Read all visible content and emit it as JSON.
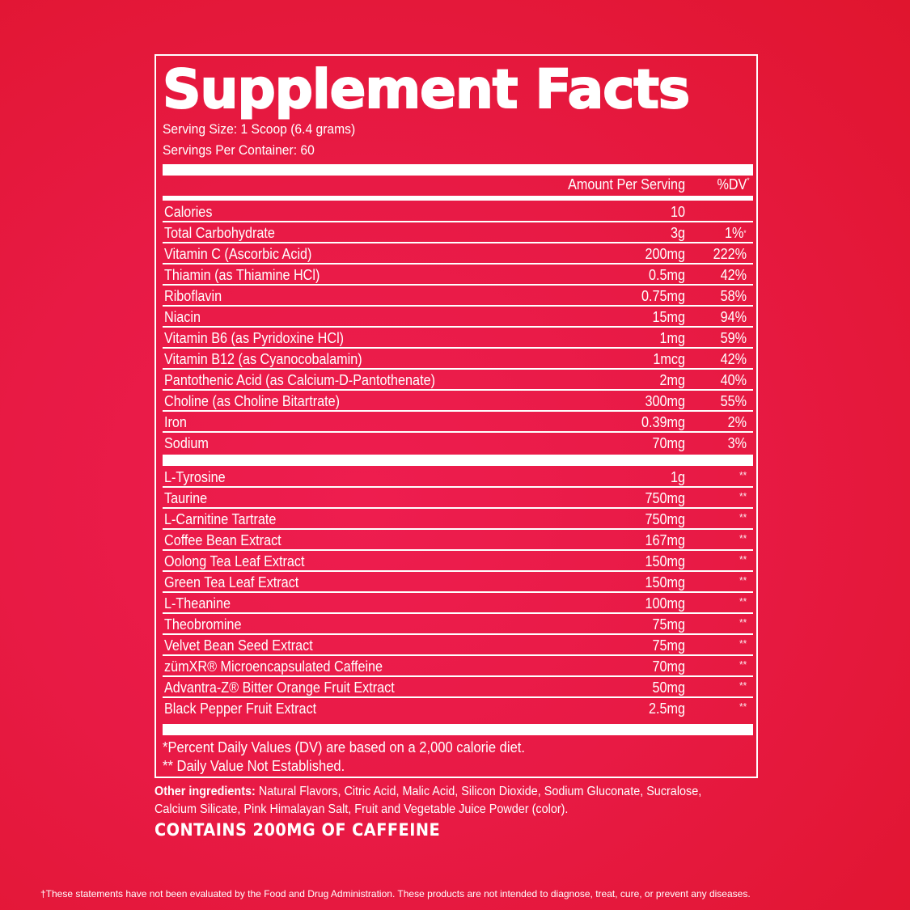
{
  "colors": {
    "background": "#e81a45",
    "text": "#ffffff"
  },
  "title": "Supplement Facts",
  "serving_size": "Serving Size: 1 Scoop (6.4 grams)",
  "servings_per_container": "Servings Per Container: 60",
  "header": {
    "amount": "Amount Per Serving",
    "dv": "%DV",
    "dv_mark": "*"
  },
  "nutrients": [
    {
      "name": "Calories",
      "amount": "10",
      "dv": ""
    },
    {
      "name": "Total Carbohydrate",
      "amount": "3g",
      "dv": "1%",
      "mark": "*"
    },
    {
      "name": "Vitamin C (Ascorbic Acid)",
      "amount": "200mg",
      "dv": "222%"
    },
    {
      "name": "Thiamin (as Thiamine HCl)",
      "amount": "0.5mg",
      "dv": "42%"
    },
    {
      "name": "Riboflavin",
      "amount": "0.75mg",
      "dv": "58%"
    },
    {
      "name": "Niacin",
      "amount": "15mg",
      "dv": "94%"
    },
    {
      "name": "Vitamin B6 (as Pyridoxine HCl)",
      "amount": "1mg",
      "dv": "59%"
    },
    {
      "name": "Vitamin B12 (as Cyanocobalamin)",
      "amount": "1mcg",
      "dv": "42%"
    },
    {
      "name": "Pantothenic Acid (as Calcium-D-Pantothenate)",
      "amount": "2mg",
      "dv": "40%"
    },
    {
      "name": "Choline (as Choline Bitartrate)",
      "amount": "300mg",
      "dv": "55%"
    },
    {
      "name": "Iron",
      "amount": "0.39mg",
      "dv": "2%"
    },
    {
      "name": "Sodium",
      "amount": "70mg",
      "dv": "3%"
    }
  ],
  "ingredients": [
    {
      "name": "L-Tyrosine",
      "amount": "1g",
      "dv": "**"
    },
    {
      "name": "Taurine",
      "amount": "750mg",
      "dv": "**"
    },
    {
      "name": "L-Carnitine Tartrate",
      "amount": "750mg",
      "dv": "**"
    },
    {
      "name": "Coffee Bean Extract",
      "amount": "167mg",
      "dv": "**"
    },
    {
      "name": "Oolong Tea Leaf Extract",
      "amount": "150mg",
      "dv": "**"
    },
    {
      "name": "Green Tea Leaf Extract",
      "amount": "150mg",
      "dv": "**"
    },
    {
      "name": "L-Theanine",
      "amount": "100mg",
      "dv": "**"
    },
    {
      "name": "Theobromine",
      "amount": "75mg",
      "dv": "**"
    },
    {
      "name": "Velvet Bean Seed Extract",
      "amount": "75mg",
      "dv": "**"
    },
    {
      "name": "zümXR® Microencapsulated Caffeine",
      "amount": "70mg",
      "dv": "**"
    },
    {
      "name": "Advantra-Z® Bitter Orange Fruit Extract",
      "amount": "50mg",
      "dv": "**"
    },
    {
      "name": "Black Pepper Fruit Extract",
      "amount": "2.5mg",
      "dv": "**"
    }
  ],
  "footnotes": {
    "dv_note": "*Percent Daily Values (DV) are based on a 2,000 calorie diet.",
    "not_established": "** Daily Value Not Established."
  },
  "other_ingredients": {
    "label": "Other ingredients:",
    "text": " Natural Flavors, Citric Acid, Malic Acid, Silicon Dioxide, Sodium Gluconate, Sucralose, Calcium Silicate, Pink Himalayan Salt, Fruit and Vegetable Juice Powder (color)."
  },
  "caffeine_statement": "CONTAINS 200MG OF CAFFEINE",
  "disclaimer": "†These statements have not been evaluated by the Food and Drug Administration. These products are not intended to diagnose, treat, cure, or prevent any diseases."
}
